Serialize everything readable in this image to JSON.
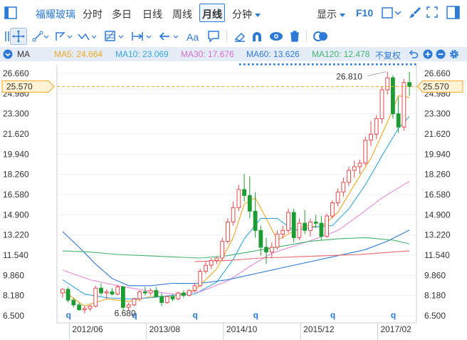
{
  "toolbar": {
    "stock_name": "福耀玻璃",
    "tabs": [
      "分时",
      "多日",
      "日线",
      "周线",
      "月线",
      "分钟"
    ],
    "active_tab": "月线",
    "display_label": "显示",
    "f10_label": "F10"
  },
  "drawtools": {
    "text_tool_label": "Aa"
  },
  "ma_bar": {
    "label": "MA",
    "ma5": "MA5: 24.664",
    "ma10": "MA10: 23.069",
    "ma30": "MA30: 17.676",
    "ma60": "MA60: 13.626",
    "ma120": "MA120: 12.478",
    "restore_label": "不复权",
    "colors": {
      "ma5": "#f5a623",
      "ma10": "#35a7dd",
      "ma30": "#d86dcf",
      "ma60": "#2d7ad6",
      "ma120": "#43b56f"
    }
  },
  "chart_data": {
    "type": "candlestick",
    "period": "monthly",
    "y_ticks": [
      "26.660",
      "24.980",
      "23.300",
      "21.620",
      "19.940",
      "18.260",
      "16.580",
      "14.900",
      "13.220",
      "11.540",
      "9.860",
      "8.180",
      "6.500"
    ],
    "ylim": [
      6.5,
      26.66
    ],
    "x_ticks": [
      "2012/06",
      "2013/08",
      "2014/10",
      "2015/12",
      "2017/02"
    ],
    "current_price": "25.570",
    "high_label": "26.810",
    "low_label": "6.680",
    "event_marker": "q",
    "colors": {
      "up": "#e8484a",
      "down": "#1e9c34",
      "price_line": "#f5a623"
    },
    "candles": [
      {
        "o": 8.4,
        "h": 8.8,
        "l": 8.0,
        "c": 8.7
      },
      {
        "o": 8.7,
        "h": 8.9,
        "l": 7.6,
        "c": 7.8
      },
      {
        "o": 7.8,
        "h": 8.0,
        "l": 7.2,
        "c": 7.4
      },
      {
        "o": 7.4,
        "h": 7.6,
        "l": 6.9,
        "c": 7.0
      },
      {
        "o": 7.0,
        "h": 7.3,
        "l": 6.7,
        "c": 7.1
      },
      {
        "o": 7.1,
        "h": 7.4,
        "l": 6.9,
        "c": 7.3
      },
      {
        "o": 7.3,
        "h": 9.0,
        "l": 7.2,
        "c": 8.8
      },
      {
        "o": 8.8,
        "h": 9.2,
        "l": 8.2,
        "c": 8.4
      },
      {
        "o": 8.4,
        "h": 8.7,
        "l": 7.9,
        "c": 8.5
      },
      {
        "o": 8.5,
        "h": 8.8,
        "l": 8.2,
        "c": 8.3
      },
      {
        "o": 8.3,
        "h": 9.1,
        "l": 8.2,
        "c": 8.9
      },
      {
        "o": 8.9,
        "h": 9.0,
        "l": 7.0,
        "c": 7.2
      },
      {
        "o": 7.2,
        "h": 7.6,
        "l": 6.9,
        "c": 7.4
      },
      {
        "o": 7.4,
        "h": 8.0,
        "l": 7.3,
        "c": 7.9
      },
      {
        "o": 7.9,
        "h": 8.6,
        "l": 7.7,
        "c": 8.5
      },
      {
        "o": 8.5,
        "h": 8.9,
        "l": 8.2,
        "c": 8.4
      },
      {
        "o": 8.4,
        "h": 8.8,
        "l": 8.2,
        "c": 8.6
      },
      {
        "o": 8.6,
        "h": 8.9,
        "l": 8.0,
        "c": 8.1
      },
      {
        "o": 8.1,
        "h": 8.4,
        "l": 7.3,
        "c": 7.6
      },
      {
        "o": 7.6,
        "h": 8.2,
        "l": 7.5,
        "c": 8.1
      },
      {
        "o": 8.1,
        "h": 8.3,
        "l": 7.7,
        "c": 7.9
      },
      {
        "o": 7.9,
        "h": 8.5,
        "l": 7.8,
        "c": 8.4
      },
      {
        "o": 8.4,
        "h": 8.6,
        "l": 8.0,
        "c": 8.2
      },
      {
        "o": 8.2,
        "h": 8.7,
        "l": 8.1,
        "c": 8.6
      },
      {
        "o": 8.6,
        "h": 9.2,
        "l": 8.5,
        "c": 9.0
      },
      {
        "o": 9.0,
        "h": 10.4,
        "l": 8.9,
        "c": 10.2
      },
      {
        "o": 10.2,
        "h": 11.0,
        "l": 10.0,
        "c": 10.7
      },
      {
        "o": 10.7,
        "h": 11.3,
        "l": 10.4,
        "c": 11.1
      },
      {
        "o": 11.1,
        "h": 11.4,
        "l": 10.8,
        "c": 11.3
      },
      {
        "o": 11.3,
        "h": 13.0,
        "l": 11.1,
        "c": 12.7
      },
      {
        "o": 12.7,
        "h": 14.6,
        "l": 12.5,
        "c": 14.3
      },
      {
        "o": 14.3,
        "h": 16.0,
        "l": 14.0,
        "c": 15.5
      },
      {
        "o": 15.5,
        "h": 17.4,
        "l": 15.2,
        "c": 17.0
      },
      {
        "o": 17.0,
        "h": 18.3,
        "l": 16.0,
        "c": 16.5
      },
      {
        "o": 16.5,
        "h": 18.1,
        "l": 14.6,
        "c": 15.2
      },
      {
        "o": 15.2,
        "h": 16.8,
        "l": 13.0,
        "c": 13.6
      },
      {
        "o": 13.6,
        "h": 14.0,
        "l": 11.5,
        "c": 12.2
      },
      {
        "o": 12.2,
        "h": 13.0,
        "l": 10.8,
        "c": 11.8
      },
      {
        "o": 11.8,
        "h": 12.6,
        "l": 11.3,
        "c": 12.2
      },
      {
        "o": 12.2,
        "h": 13.6,
        "l": 12.0,
        "c": 13.3
      },
      {
        "o": 13.3,
        "h": 14.0,
        "l": 12.9,
        "c": 13.6
      },
      {
        "o": 13.6,
        "h": 15.4,
        "l": 13.4,
        "c": 15.1
      },
      {
        "o": 15.1,
        "h": 15.4,
        "l": 12.6,
        "c": 13.0
      },
      {
        "o": 13.0,
        "h": 14.6,
        "l": 12.8,
        "c": 14.2
      },
      {
        "o": 14.2,
        "h": 15.3,
        "l": 13.3,
        "c": 13.6
      },
      {
        "o": 13.6,
        "h": 14.6,
        "l": 13.1,
        "c": 14.3
      },
      {
        "o": 14.3,
        "h": 14.9,
        "l": 13.8,
        "c": 14.2
      },
      {
        "o": 14.2,
        "h": 14.8,
        "l": 12.8,
        "c": 13.1
      },
      {
        "o": 13.1,
        "h": 15.0,
        "l": 13.0,
        "c": 14.8
      },
      {
        "o": 14.8,
        "h": 16.1,
        "l": 14.6,
        "c": 15.9
      },
      {
        "o": 15.9,
        "h": 17.1,
        "l": 15.6,
        "c": 16.8
      },
      {
        "o": 16.8,
        "h": 18.0,
        "l": 16.4,
        "c": 17.6
      },
      {
        "o": 17.6,
        "h": 18.9,
        "l": 17.3,
        "c": 18.6
      },
      {
        "o": 18.6,
        "h": 19.4,
        "l": 18.0,
        "c": 18.9
      },
      {
        "o": 18.9,
        "h": 19.5,
        "l": 18.3,
        "c": 19.2
      },
      {
        "o": 19.2,
        "h": 21.4,
        "l": 19.0,
        "c": 21.1
      },
      {
        "o": 21.1,
        "h": 22.7,
        "l": 20.6,
        "c": 21.6
      },
      {
        "o": 21.6,
        "h": 23.2,
        "l": 21.2,
        "c": 22.9
      },
      {
        "o": 22.9,
        "h": 25.6,
        "l": 22.5,
        "c": 25.3
      },
      {
        "o": 25.3,
        "h": 26.8,
        "l": 24.9,
        "c": 26.3
      },
      {
        "o": 26.3,
        "h": 26.5,
        "l": 22.9,
        "c": 23.3
      },
      {
        "o": 23.3,
        "h": 24.7,
        "l": 21.7,
        "c": 22.2
      },
      {
        "o": 22.2,
        "h": 26.2,
        "l": 21.9,
        "c": 25.9
      },
      {
        "o": 25.9,
        "h": 26.8,
        "l": 24.8,
        "c": 25.57
      }
    ],
    "x_tick_index": [
      2,
      16,
      30,
      44,
      58
    ],
    "event_index": [
      1,
      13,
      24,
      35,
      49,
      60
    ],
    "ma_lines": {
      "ma5": [
        [
          0,
          8.6
        ],
        [
          4,
          7.3
        ],
        [
          8,
          7.9
        ],
        [
          12,
          7.7
        ],
        [
          16,
          8.1
        ],
        [
          20,
          8.1
        ],
        [
          24,
          8.6
        ],
        [
          28,
          10.4
        ],
        [
          31,
          13.0
        ],
        [
          33,
          15.8
        ],
        [
          35,
          16.3
        ],
        [
          37,
          14.6
        ],
        [
          39,
          12.8
        ],
        [
          41,
          13.3
        ],
        [
          44,
          14.0
        ],
        [
          47,
          13.9
        ],
        [
          50,
          15.1
        ],
        [
          53,
          17.4
        ],
        [
          56,
          19.6
        ],
        [
          59,
          22.6
        ],
        [
          61,
          24.8
        ],
        [
          63,
          24.66
        ]
      ],
      "ma10": [
        [
          0,
          9.5
        ],
        [
          4,
          8.3
        ],
        [
          8,
          8.0
        ],
        [
          12,
          7.9
        ],
        [
          16,
          8.0
        ],
        [
          20,
          8.2
        ],
        [
          24,
          8.3
        ],
        [
          28,
          9.3
        ],
        [
          31,
          11.2
        ],
        [
          33,
          12.9
        ],
        [
          36,
          14.6
        ],
        [
          39,
          14.6
        ],
        [
          42,
          13.6
        ],
        [
          46,
          13.9
        ],
        [
          49,
          14.0
        ],
        [
          52,
          15.4
        ],
        [
          55,
          17.4
        ],
        [
          58,
          19.8
        ],
        [
          61,
          22.1
        ],
        [
          63,
          23.07
        ]
      ],
      "ma30": [
        [
          0,
          10.3
        ],
        [
          5,
          9.5
        ],
        [
          10,
          9.0
        ],
        [
          15,
          8.6
        ],
        [
          20,
          8.3
        ],
        [
          25,
          8.5
        ],
        [
          30,
          9.4
        ],
        [
          34,
          10.6
        ],
        [
          38,
          11.7
        ],
        [
          42,
          12.3
        ],
        [
          46,
          12.9
        ],
        [
          50,
          13.6
        ],
        [
          54,
          14.9
        ],
        [
          58,
          16.3
        ],
        [
          63,
          17.68
        ]
      ],
      "ma60": [
        [
          0,
          13.5
        ],
        [
          3,
          12.2
        ],
        [
          6,
          10.8
        ],
        [
          9,
          9.6
        ],
        [
          12,
          9.0
        ],
        [
          16,
          9.0
        ],
        [
          20,
          9.2
        ],
        [
          25,
          9.2
        ],
        [
          30,
          9.5
        ],
        [
          35,
          10.0
        ],
        [
          40,
          10.5
        ],
        [
          45,
          11.0
        ],
        [
          50,
          11.5
        ],
        [
          55,
          12.0
        ],
        [
          59,
          12.7
        ],
        [
          63,
          13.63
        ]
      ],
      "ma120": [
        [
          0,
          11.9
        ],
        [
          5,
          11.8
        ],
        [
          10,
          11.6
        ],
        [
          15,
          11.5
        ],
        [
          20,
          11.4
        ],
        [
          25,
          11.3
        ],
        [
          30,
          11.5
        ],
        [
          35,
          11.9
        ],
        [
          40,
          12.3
        ],
        [
          45,
          12.7
        ],
        [
          50,
          12.9
        ],
        [
          55,
          13.0
        ],
        [
          60,
          12.8
        ],
        [
          63,
          12.48
        ]
      ],
      "ma120_2": [
        [
          24,
          11.0
        ],
        [
          30,
          11.1
        ],
        [
          36,
          11.3
        ],
        [
          42,
          11.4
        ],
        [
          48,
          11.5
        ],
        [
          54,
          11.6
        ],
        [
          60,
          11.8
        ],
        [
          63,
          11.9
        ]
      ]
    }
  }
}
